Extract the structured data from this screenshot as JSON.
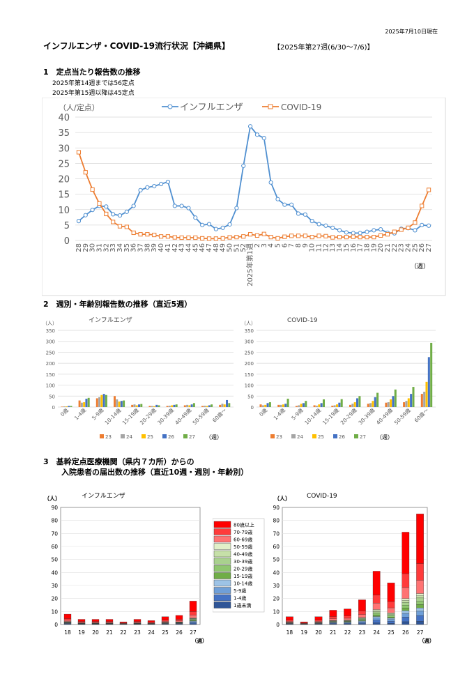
{
  "header": {
    "date_note": "2025年7月10日現在",
    "title": "インフルエンザ・COVID-19流行状況【沖縄県】",
    "week_range": "【2025年第27週(6/30〜7/6)】"
  },
  "section1": {
    "heading": "1　定点当たり報告数の推移",
    "note1": "2025年第14週までは56定点",
    "note2": "2025年第15週以降は45定点"
  },
  "section2": {
    "heading": "2　週別・年齢別報告数の推移（直近5週）"
  },
  "section3": {
    "heading1": "3　基幹定点医療機関（県内７カ所）からの",
    "heading2": "入院患者の届出数の推移（直近10週・週別・年齢別）"
  },
  "colors": {
    "influenza": "#4f8fd0",
    "covid": "#ed7d31",
    "w23": "#ed7d31",
    "w24": "#a5a5a5",
    "w25": "#ffc000",
    "w26": "#4472c4",
    "w27": "#70ad47",
    "grid": "#d9d9d9"
  },
  "chart_data": [
    {
      "type": "line",
      "ylabel": "（人/定点）",
      "xlabel": "（週）",
      "ylim": [
        0,
        40
      ],
      "yticks": [
        0,
        5,
        10,
        15,
        20,
        25,
        30,
        35,
        40
      ],
      "x": [
        "28",
        "29",
        "30",
        "31",
        "32",
        "33",
        "34",
        "35",
        "36",
        "37",
        "38",
        "39",
        "40",
        "41",
        "42",
        "43",
        "44",
        "45",
        "46",
        "47",
        "48",
        "49",
        "50",
        "51",
        "52",
        "2025年第1週",
        "2",
        "3",
        "4",
        "5",
        "6",
        "7",
        "8",
        "9",
        "10",
        "11",
        "12",
        "13",
        "14",
        "15",
        "16",
        "17",
        "18",
        "19",
        "20",
        "21",
        "22",
        "23",
        "24",
        "25",
        "26",
        "27"
      ],
      "series": [
        {
          "name": "インフルエンザ",
          "values": [
            6.3,
            8.2,
            9.9,
            11.2,
            11.0,
            8.5,
            8.1,
            9.3,
            11.2,
            16.3,
            17.2,
            17.6,
            18.3,
            19.0,
            11.2,
            11.2,
            10.5,
            7.4,
            5.0,
            5.3,
            3.7,
            4.1,
            5.2,
            10.5,
            24.2,
            37.0,
            34.3,
            33.2,
            18.8,
            13.4,
            11.6,
            11.6,
            8.7,
            8.4,
            6.3,
            5.3,
            4.8,
            4.1,
            3.3,
            2.6,
            2.4,
            2.4,
            2.8,
            3.3,
            3.6,
            2.5,
            2.3,
            3.8,
            4.0,
            3.3,
            5.0,
            4.8
          ]
        },
        {
          "name": "COVID-19",
          "values": [
            28.6,
            22.1,
            16.5,
            12.0,
            8.6,
            6.0,
            4.6,
            4.4,
            2.5,
            2.0,
            2.0,
            1.8,
            1.3,
            1.3,
            1.0,
            0.9,
            0.9,
            0.9,
            0.7,
            0.6,
            0.6,
            0.7,
            1.0,
            1.1,
            1.3,
            2.0,
            1.6,
            2.1,
            1.1,
            0.7,
            1.2,
            1.5,
            1.5,
            1.5,
            1.1,
            1.5,
            1.4,
            1.0,
            1.1,
            1.1,
            1.2,
            1.1,
            1.1,
            1.1,
            1.6,
            2.0,
            2.8,
            3.5,
            4.1,
            5.8,
            11.2,
            16.4
          ]
        }
      ]
    },
    {
      "type": "bar",
      "title": "インフルエンザ",
      "ylabel": "（人）",
      "xlabel": "（週）",
      "ylim": [
        0,
        350
      ],
      "yticks": [
        0,
        50,
        100,
        150,
        200,
        250,
        300,
        350
      ],
      "categories": [
        "0歳",
        "1-4歳",
        "5-9歳",
        "10-14歳",
        "15-19歳",
        "20-29歳",
        "30-39歳",
        "40-49歳",
        "50-59歳",
        "60歳～"
      ],
      "series": [
        {
          "name": "23",
          "values": [
            2,
            30,
            40,
            50,
            10,
            5,
            5,
            8,
            5,
            10
          ]
        },
        {
          "name": "24",
          "values": [
            3,
            20,
            45,
            35,
            12,
            5,
            6,
            10,
            6,
            15
          ]
        },
        {
          "name": "25",
          "values": [
            3,
            22,
            55,
            25,
            8,
            4,
            8,
            8,
            5,
            12
          ]
        },
        {
          "name": "26",
          "values": [
            5,
            38,
            60,
            28,
            12,
            10,
            10,
            12,
            8,
            32
          ]
        },
        {
          "name": "27",
          "values": [
            5,
            42,
            55,
            30,
            14,
            8,
            12,
            18,
            12,
            18
          ]
        }
      ]
    },
    {
      "type": "bar",
      "title": "COVID-19",
      "ylabel": "（人）",
      "xlabel": "（週）",
      "ylim": [
        0,
        350
      ],
      "yticks": [
        0,
        50,
        100,
        150,
        200,
        250,
        300,
        350
      ],
      "categories": [
        "0歳",
        "1-4歳",
        "5-9歳",
        "10-14歳",
        "15-19歳",
        "20-29歳",
        "30-39歳",
        "40-49歳",
        "50-59歳",
        "60歳～"
      ],
      "series": [
        {
          "name": "23",
          "values": [
            12,
            10,
            5,
            8,
            6,
            10,
            15,
            20,
            22,
            60
          ]
        },
        {
          "name": "24",
          "values": [
            8,
            10,
            8,
            6,
            8,
            15,
            18,
            22,
            28,
            70
          ]
        },
        {
          "name": "25",
          "values": [
            10,
            12,
            15,
            12,
            12,
            22,
            28,
            35,
            40,
            115
          ]
        },
        {
          "name": "26",
          "values": [
            18,
            15,
            18,
            18,
            20,
            40,
            45,
            50,
            60,
            228
          ]
        },
        {
          "name": "27",
          "values": [
            22,
            38,
            28,
            35,
            36,
            50,
            65,
            80,
            92,
            293
          ]
        }
      ]
    },
    {
      "type": "bar",
      "title": "インフルエンザ",
      "ylabel": "（人）",
      "xlabel": "（週）",
      "ylim": [
        0,
        90
      ],
      "yticks": [
        0,
        10,
        20,
        30,
        40,
        50,
        60,
        70,
        80,
        90
      ],
      "categories": [
        "18",
        "19",
        "20",
        "21",
        "22",
        "23",
        "24",
        "25",
        "26",
        "27"
      ],
      "values": [
        8,
        4,
        4,
        4,
        2,
        4,
        3,
        6,
        7,
        18
      ]
    },
    {
      "type": "bar",
      "title": "COVID-19",
      "ylabel": "（人）",
      "xlabel": "（週）",
      "ylim": [
        0,
        90
      ],
      "yticks": [
        0,
        10,
        20,
        30,
        40,
        50,
        60,
        70,
        80,
        90
      ],
      "categories": [
        "18",
        "19",
        "20",
        "21",
        "22",
        "23",
        "24",
        "25",
        "26",
        "27"
      ],
      "values": [
        6,
        2,
        6,
        11,
        12,
        19,
        41,
        32,
        71,
        85
      ]
    }
  ],
  "age_legend": [
    "80歳以上",
    "70-79歳",
    "60-69歳",
    "50-59歳",
    "40-49歳",
    "30-39歳",
    "20-29歳",
    "15-19歳",
    "10-14歳",
    "5-9歳",
    "1-4歳",
    "1歳未満"
  ]
}
